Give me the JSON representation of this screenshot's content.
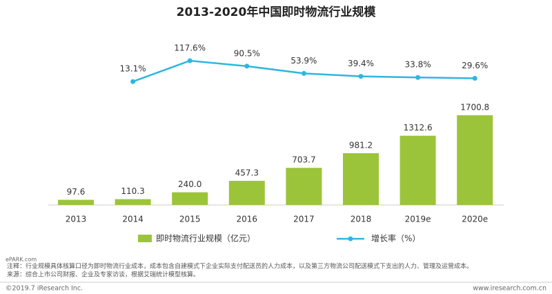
{
  "chart_data": {
    "type": "bar",
    "title": "2013-2020年中国即时物流行业规模",
    "categories": [
      "2013",
      "2014",
      "2015",
      "2016",
      "2017",
      "2018",
      "2019e",
      "2020e"
    ],
    "series": [
      {
        "name": "即时物流行业规模（亿元）",
        "type": "bar",
        "color": "#9cc43a",
        "values": [
          97.6,
          110.3,
          240.0,
          457.3,
          703.7,
          981.2,
          1312.6,
          1700.8
        ],
        "value_labels": [
          "97.6",
          "110.3",
          "240.0",
          "457.3",
          "703.7",
          "981.2",
          "1312.6",
          "1700.8"
        ]
      },
      {
        "name": "增长率（%）",
        "type": "line",
        "axis": "y2",
        "color": "#2cb7e0",
        "values": [
          null,
          13.1,
          117.6,
          90.5,
          53.9,
          39.4,
          33.8,
          29.6
        ],
        "value_labels": [
          null,
          "13.1%",
          "117.6%",
          "90.5%",
          "53.9%",
          "39.4%",
          "33.8%",
          "29.6%"
        ]
      }
    ],
    "legend": "bottom",
    "notes": [
      "注释：行业规模具体核算口径为即时物流行业成本，成本包含自建模式下企业实际支付配送员的人力成本，以及第三方物流公司配送模式下支出的人力、管理及运营成本。",
      "来源：综合上市公司财报、企业及专家访谈，根据艾瑞统计模型核算。"
    ],
    "copyright": "©2019.7 iResearch Inc.",
    "url": "www.iresearch.com.cn",
    "watermark": "ePARK.com"
  }
}
